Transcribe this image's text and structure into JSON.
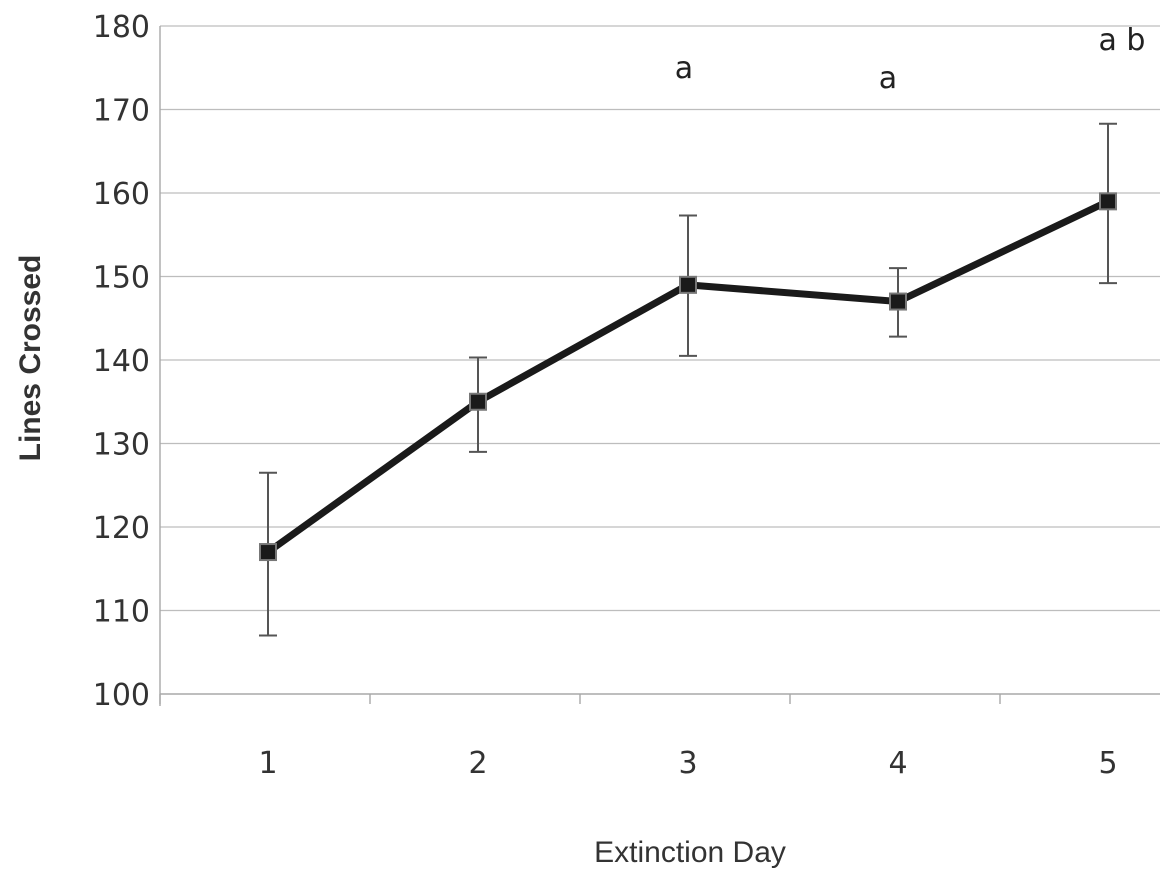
{
  "chart_data": {
    "type": "line",
    "title": "",
    "xlabel": "Extinction Day",
    "ylabel": "Lines Crossed",
    "x": [
      1,
      2,
      3,
      4,
      5
    ],
    "xtick_labels": [
      "1",
      "2",
      "3",
      "4",
      "5"
    ],
    "ylim": [
      100,
      180
    ],
    "yticks": [
      100,
      110,
      120,
      130,
      140,
      150,
      160,
      170,
      180
    ],
    "grid": "horizontal",
    "legend": "none",
    "series": [
      {
        "values": [
          117,
          135,
          149,
          147,
          159
        ],
        "error_upper": [
          126.5,
          140.3,
          157.3,
          151.0,
          168.3
        ],
        "error_lower": [
          107.0,
          129.0,
          140.5,
          142.8,
          149.2
        ],
        "marker": "square",
        "color": "#1a1a1a"
      }
    ],
    "annotations": [
      {
        "x": 3,
        "text": "a"
      },
      {
        "x": 4,
        "text": "a"
      },
      {
        "x": 5,
        "text": "a b"
      }
    ]
  }
}
